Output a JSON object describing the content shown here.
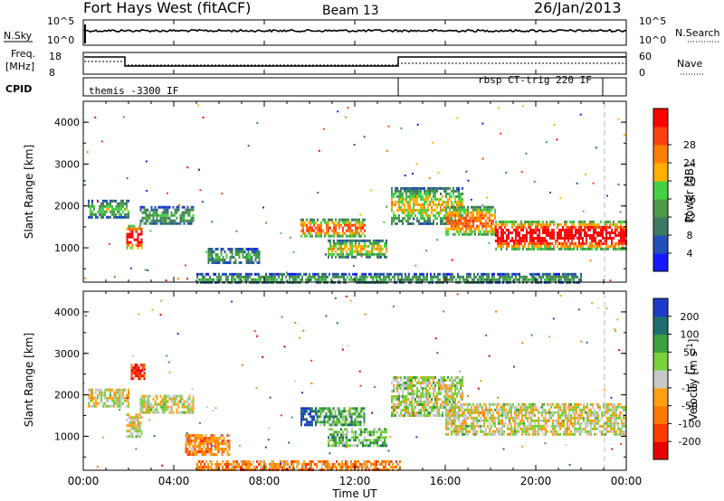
{
  "header": {
    "station": "Fort Hays West (fitACF)",
    "beam": "Beam 13",
    "date": "26/Jan/2013"
  },
  "status_panels": {
    "nsky_label": "N.Sky",
    "nsky_ticks": [
      "10^5",
      "10^0"
    ],
    "nsearch_label": "N.Search",
    "nsearch_ticks": [
      "10^5",
      "10^0"
    ],
    "freq_label_1": "Freq.",
    "freq_label_2": "[MHz]",
    "freq_ticks": [
      "18",
      "8"
    ],
    "nave_label": "Nave",
    "nave_ticks": [
      "60",
      "0"
    ],
    "cpid_label": "CPID",
    "cpid_left": "themis -3300 IF",
    "cpid_right": "rbsp CT-trig 220 IF"
  },
  "chart_data": [
    {
      "type": "heatmap",
      "ylabel": "Slant Range [km]",
      "xlabel": "",
      "yticks": [
        "1000",
        "2000",
        "3000",
        "4000"
      ],
      "xlim": [
        "00:00",
        "24:00"
      ],
      "ylim": [
        180,
        4500
      ],
      "colorbar": {
        "label": "Power [dB]",
        "ticks": [
          "4",
          "8",
          "12",
          "16",
          "20",
          "24",
          "28"
        ],
        "colors": [
          "#1818ff",
          "#2050b8",
          "#3c7a62",
          "#4a9a4a",
          "#44d044",
          "#ffb000",
          "#ff8000",
          "#ff4010",
          "#ff0000"
        ]
      },
      "echo_regions": [
        {
          "t0": 0.2,
          "t1": 2.0,
          "r0": 1750,
          "r1": 2150,
          "level": 0.35
        },
        {
          "t0": 1.9,
          "t1": 2.6,
          "r0": 1000,
          "r1": 1550,
          "level": 0.85
        },
        {
          "t0": 2.5,
          "t1": 4.9,
          "r0": 1550,
          "r1": 2000,
          "level": 0.3
        },
        {
          "t0": 5.5,
          "t1": 7.8,
          "r0": 650,
          "r1": 1000,
          "level": 0.3
        },
        {
          "t0": 9.6,
          "t1": 12.4,
          "r0": 1280,
          "r1": 1700,
          "level": 0.6
        },
        {
          "t0": 10.8,
          "t1": 13.4,
          "r0": 800,
          "r1": 1200,
          "level": 0.45
        },
        {
          "t0": 13.6,
          "t1": 16.8,
          "r0": 1600,
          "r1": 2450,
          "level": 0.45
        },
        {
          "t0": 16.0,
          "t1": 18.2,
          "r0": 1300,
          "r1": 2000,
          "level": 0.6
        },
        {
          "t0": 18.2,
          "t1": 24.0,
          "r0": 1000,
          "r1": 1650,
          "level": 0.8
        },
        {
          "t0": 5.0,
          "t1": 22.0,
          "r0": 180,
          "r1": 400,
          "level": 0.3
        }
      ]
    },
    {
      "type": "heatmap",
      "ylabel": "Slant Range [km]",
      "xlabel": "Time UT",
      "yticks": [
        "1000",
        "2000",
        "3000",
        "4000"
      ],
      "xticks": [
        "00:00",
        "04:00",
        "08:00",
        "12:00",
        "16:00",
        "20:00",
        "00:00"
      ],
      "xlim": [
        "00:00",
        "24:00"
      ],
      "ylim": [
        180,
        4500
      ],
      "colorbar": {
        "label": "Velocity [m s^-1]",
        "ticks": [
          "200",
          "100",
          "50",
          "15",
          "-15",
          "-50",
          "-100",
          "-200"
        ],
        "colors": [
          "#1e3cc8",
          "#1e6e6e",
          "#3ca03c",
          "#78d23c",
          "#c8c8c8",
          "#ffa014",
          "#ff7800",
          "#ff3c00",
          "#e60000"
        ]
      },
      "echo_regions": [
        {
          "t0": 0.2,
          "t1": 2.0,
          "r0": 1750,
          "r1": 2150,
          "level": 0.5
        },
        {
          "t0": 1.9,
          "t1": 2.6,
          "r0": 1000,
          "r1": 1550,
          "level": 0.5
        },
        {
          "t0": 2.5,
          "t1": 4.9,
          "r0": 1550,
          "r1": 2000,
          "level": 0.5
        },
        {
          "t0": 2.1,
          "t1": 2.7,
          "r0": 2400,
          "r1": 2750,
          "level": 0.9
        },
        {
          "t0": 4.5,
          "t1": 6.5,
          "r0": 550,
          "r1": 1050,
          "level": 0.7
        },
        {
          "t0": 9.6,
          "t1": 10.3,
          "r0": 1250,
          "r1": 1700,
          "level": 0.05
        },
        {
          "t0": 10.3,
          "t1": 12.4,
          "r0": 1300,
          "r1": 1700,
          "level": 0.3
        },
        {
          "t0": 10.8,
          "t1": 13.4,
          "r0": 800,
          "r1": 1200,
          "level": 0.35
        },
        {
          "t0": 13.6,
          "t1": 16.8,
          "r0": 1500,
          "r1": 2450,
          "level": 0.45
        },
        {
          "t0": 16.0,
          "t1": 24.0,
          "r0": 1050,
          "r1": 1800,
          "level": 0.5
        },
        {
          "t0": 5.0,
          "t1": 14.0,
          "r0": 180,
          "r1": 420,
          "level": 0.68
        }
      ]
    }
  ]
}
